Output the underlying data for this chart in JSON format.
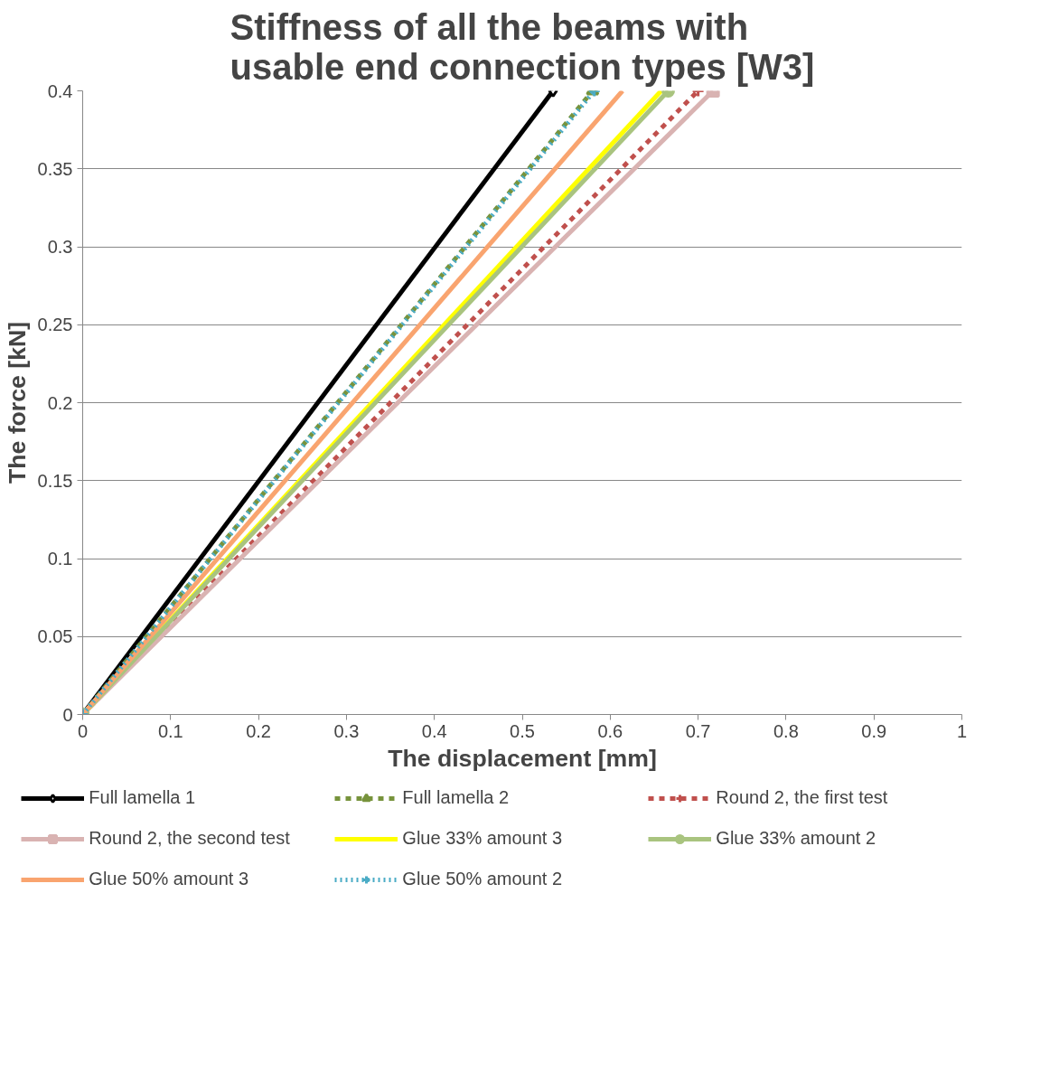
{
  "chart_data": {
    "type": "line",
    "title": "Stiffness of all the beams with usable end connection types [W3]",
    "xlabel": "The displacement [mm]",
    "ylabel": "The force [kN]",
    "xlim": [
      0,
      1
    ],
    "ylim": [
      0,
      0.4
    ],
    "xticks": [
      0,
      0.1,
      0.2,
      0.3,
      0.4,
      0.5,
      0.6,
      0.7,
      0.8,
      0.9,
      1
    ],
    "yticks": [
      0,
      0.05,
      0.1,
      0.15,
      0.2,
      0.25,
      0.3,
      0.35,
      0.4
    ],
    "grid": "y",
    "legend": "bottom",
    "series": [
      {
        "name": "Full lamella 1",
        "color": "#000000",
        "x": [
          0,
          0.535
        ],
        "values": [
          0,
          0.4
        ],
        "marker": "diamond",
        "line_style": "solid"
      },
      {
        "name": "Full lamella 2",
        "color": "#77933c",
        "x": [
          0,
          0.58
        ],
        "values": [
          0,
          0.4
        ],
        "marker": "triangle",
        "line_style": "dashed"
      },
      {
        "name": "Round 2, the first test",
        "color": "#c0504d",
        "x": [
          0,
          0.7
        ],
        "values": [
          0,
          0.4
        ],
        "marker": "cross",
        "line_style": "dashed"
      },
      {
        "name": "Round 2, the second test",
        "color": "#d9b3b2",
        "x": [
          0,
          0.717
        ],
        "values": [
          0,
          0.4
        ],
        "marker": "square",
        "line_style": "solid"
      },
      {
        "name": "Glue 33% amount 3",
        "color": "#ffff00",
        "x": [
          0,
          0.658
        ],
        "values": [
          0,
          0.4
        ],
        "marker": "none",
        "line_style": "solid"
      },
      {
        "name": "Glue 33% amount 2",
        "color": "#a9c47f",
        "x": [
          0,
          0.666
        ],
        "values": [
          0,
          0.4
        ],
        "marker": "circle",
        "line_style": "solid"
      },
      {
        "name": "Glue 50% amount 3",
        "color": "#f9a46f",
        "x": [
          0,
          0.614
        ],
        "values": [
          0,
          0.4
        ],
        "marker": "none",
        "line_style": "solid"
      },
      {
        "name": "Glue 50% amount 2",
        "color": "#4bacc6",
        "x": [
          0,
          0.582
        ],
        "values": [
          0,
          0.4
        ],
        "marker": "cross",
        "line_style": "dotted"
      }
    ]
  }
}
